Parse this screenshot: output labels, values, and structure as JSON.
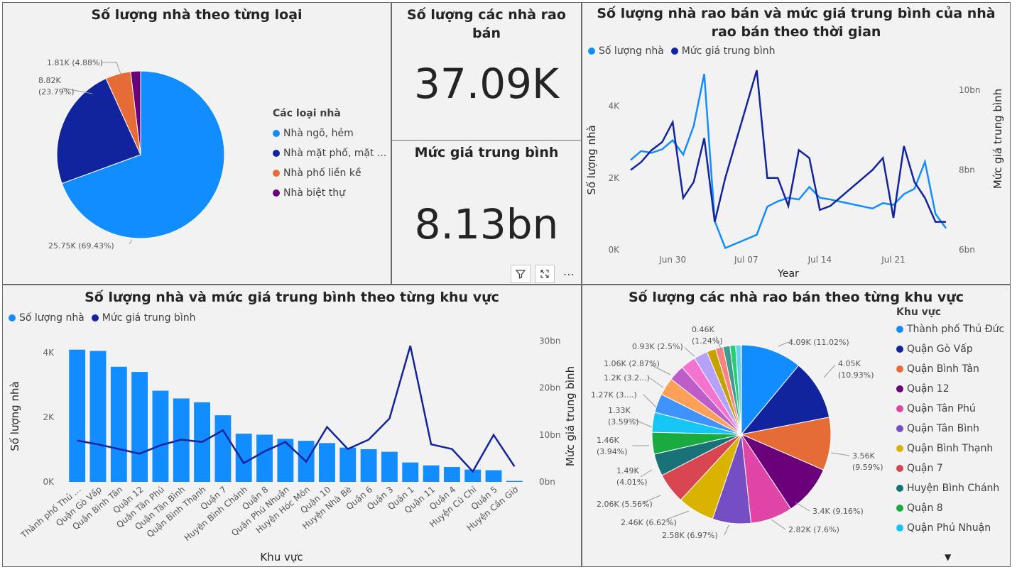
{
  "colors": {
    "primary": "#118dff",
    "dark": "#12239e",
    "orange": "#e66c37",
    "purple": "#6b007b"
  },
  "panel_house_type": {
    "title": "Số lượng nhà theo từng loại",
    "legend_title": "Các loại nhà",
    "chart_data": {
      "type": "pie",
      "categories": [
        "Nhà ngõ, hẻm",
        "Nhà mặt phố, mặt ...",
        "Nhà phố liền kề",
        "Nhà biệt thự"
      ],
      "values": [
        25750,
        8820,
        1810,
        710
      ],
      "labels": [
        "25.75K (69.43%)",
        "8.82K (23.79%)",
        "1.81K (4.88%)",
        ""
      ],
      "colors": [
        "#118dff",
        "#12239e",
        "#e66c37",
        "#6b007b"
      ]
    }
  },
  "kpi_count": {
    "title": "Số lượng các nhà rao bán",
    "value": "37.09K"
  },
  "kpi_price": {
    "title": "Mức giá trung bình",
    "value": "8.13bn"
  },
  "toolbar": {
    "filter_icon": "filter-icon",
    "focus_icon": "focus-mode-icon",
    "more_label": "⋯"
  },
  "panel_time": {
    "title": "Số lượng nhà rao bán và mức giá trung bình của nhà rao bán theo thời gian",
    "legend": [
      "Số lượng nhà",
      "Mức giá trung bình"
    ],
    "chart_data": {
      "type": "line",
      "xlabel": "Year",
      "ylabel": "Số lượng nhà",
      "y2label": "Mức giá trung bình",
      "x_ticks": [
        "Jun 30",
        "Jul 07",
        "Jul 14",
        "Jul 21"
      ],
      "y_ticks": [
        "0K",
        "2K",
        "4K"
      ],
      "y2_ticks": [
        "6bn",
        "8bn",
        "10bn"
      ],
      "ylim": [
        0,
        5000
      ],
      "y2lim": [
        6,
        10.5
      ],
      "x": [
        "2023-06-26",
        "2023-06-27",
        "2023-06-28",
        "2023-06-29",
        "2023-06-30",
        "2023-07-01",
        "2023-07-02",
        "2023-07-03",
        "2023-07-04",
        "2023-07-05",
        "2023-07-08",
        "2023-07-09",
        "2023-07-10",
        "2023-07-11",
        "2023-07-12",
        "2023-07-13",
        "2023-07-14",
        "2023-07-15",
        "2023-07-19",
        "2023-07-20",
        "2023-07-21",
        "2023-07-22",
        "2023-07-23",
        "2023-07-24",
        "2023-07-25",
        "2023-07-26"
      ],
      "series": [
        {
          "name": "Số lượng nhà",
          "color": "#118dff",
          "values": [
            2500,
            2750,
            2700,
            2800,
            3050,
            2650,
            3450,
            4900,
            800,
            50,
            420,
            1200,
            1350,
            1450,
            1400,
            1750,
            1450,
            1400,
            1150,
            1300,
            1250,
            1550,
            1700,
            2450,
            1000,
            600
          ]
        },
        {
          "name": "Mức giá trung bình",
          "color": "#12239e",
          "values": [
            8.0,
            8.2,
            8.5,
            8.7,
            9.2,
            7.3,
            7.7,
            8.8,
            6.7,
            7.8,
            10.5,
            7.8,
            7.8,
            7.1,
            8.5,
            8.3,
            7.0,
            7.1,
            8.0,
            8.3,
            6.8,
            8.6,
            7.7,
            7.3,
            6.7,
            6.7
          ]
        }
      ]
    }
  },
  "panel_region_bar": {
    "title": "Số lượng nhà và mức giá trung bình theo từng khu vực",
    "legend": [
      "Số lượng nhà",
      "Mức giá trung bình"
    ],
    "chart_data": {
      "type": "bar",
      "xlabel": "Khu vực",
      "ylabel": "Số lượng nhà",
      "y2label": "Mức giá trung bình",
      "y_ticks": [
        "0K",
        "2K",
        "4K"
      ],
      "y2_ticks": [
        "0bn",
        "10bn",
        "20bn",
        "30bn"
      ],
      "ylim": [
        0,
        4500
      ],
      "y2lim": [
        0,
        31
      ],
      "categories": [
        "Thành phố Thủ ...",
        "Quận Gò Vấp",
        "Quận Bình Tân",
        "Quận 12",
        "Quận Tân Phú",
        "Quận Tân Bình",
        "Quận Bình Thạnh",
        "Quận 7",
        "Huyện Bình Chánh",
        "Quận 8",
        "Quận Phú Nhuận",
        "Huyện Hóc Môn",
        "Quận 10",
        "Huyện Nhà Bè",
        "Quận 6",
        "Quận 3",
        "Quận 1",
        "Quận 11",
        "Quận 4",
        "Huyện Củ Chi",
        "Quận 5",
        "Huyện Cần Giờ"
      ],
      "series": [
        {
          "name": "Số lượng nhà",
          "color": "#118dff",
          "values": [
            4090,
            4050,
            3560,
            3400,
            2820,
            2580,
            2460,
            2060,
            1490,
            1460,
            1330,
            1270,
            1200,
            1060,
            1010,
            930,
            600,
            510,
            460,
            380,
            360,
            30
          ]
        },
        {
          "name": "Mức giá trung bình",
          "color": "#12239e",
          "values": [
            8.8,
            8.0,
            7.0,
            6.0,
            7.8,
            9.0,
            8.5,
            11.0,
            4.0,
            6.5,
            8.5,
            4.3,
            11.7,
            7.0,
            9.0,
            13.5,
            29.0,
            8.0,
            7.0,
            2.2,
            10.0,
            3.3
          ]
        }
      ]
    }
  },
  "panel_region_pie": {
    "title": "Số lượng các nhà rao bán theo từng khu vực",
    "legend_title": "Khu vực",
    "legend_items": [
      "Thành phố Thủ Đức",
      "Quận Gò Vấp",
      "Quận Bình Tân",
      "Quận 12",
      "Quận Tân Phú",
      "Quận Tân Bình",
      "Quận Bình Thạnh",
      "Quận 7",
      "Huyện Bình Chánh",
      "Quận 8",
      "Quận Phú Nhuận"
    ],
    "more_icon": "▼",
    "chart_data": {
      "type": "pie",
      "categories": [
        "Thành phố Thủ Đức",
        "Quận Gò Vấp",
        "Quận Bình Tân",
        "Quận 12",
        "Quận Tân Phú",
        "Quận Tân Bình",
        "Quận Bình Thạnh",
        "Quận 7",
        "Huyện Bình Chánh",
        "Quận 8",
        "Quận Phú Nhuận",
        "Huyện Hóc Môn",
        "Quận 10",
        "Huyện Nhà Bè",
        "Quận 6",
        "Quận 3",
        "Quận 1",
        "Quận 11",
        "Quận 4",
        "Huyện Củ Chi",
        "Quận 5",
        "Huyện Cần Giờ"
      ],
      "values": [
        4090,
        4050,
        3560,
        3400,
        2820,
        2580,
        2460,
        2060,
        1490,
        1460,
        1330,
        1270,
        1200,
        1060,
        1010,
        930,
        600,
        510,
        460,
        380,
        360,
        30
      ],
      "labels": [
        "4.09K (11.02%)",
        "4.05K (10.93%)",
        "3.56K (9.59%)",
        "3.4K (9.16%)",
        "2.82K (7.6%)",
        "2.58K (6.97%)",
        "2.46K (6.62%)",
        "2.06K (5.56%)",
        "1.49K (4.01%)",
        "1.46K (3.94%)",
        "1.33K (3.59%)",
        "1.27K (3....)",
        "1.2K (3.2...)",
        "1.06K (2.87%)",
        "0.93K (2.5%)",
        "0.46K (1.24%)"
      ],
      "colors": [
        "#118dff",
        "#12239e",
        "#e66c37",
        "#6b007b",
        "#e044a7",
        "#744ec2",
        "#d9b300",
        "#d64550",
        "#197278",
        "#1aab40",
        "#15c6f4",
        "#4092ff",
        "#ffa058",
        "#be5dc9",
        "#f472d0",
        "#b5a1ff",
        "#c4a200",
        "#ff8080",
        "#3d9e8e",
        "#2ecc71",
        "#60d4f0",
        "#1f7ae0"
      ]
    }
  }
}
